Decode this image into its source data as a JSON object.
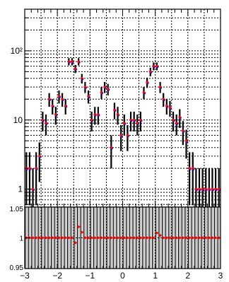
{
  "chart_data": [
    {
      "type": "scatter",
      "panel": "main",
      "title": "",
      "xlabel": "",
      "ylabel": "",
      "xlim": [
        -3,
        3
      ],
      "ylim": [
        0.55,
        400
      ],
      "y_scale": "log",
      "grid": true,
      "legend": "none",
      "y_tick_labels": [
        "1",
        "10",
        "10²"
      ],
      "y_tick_values": [
        1,
        10,
        100
      ],
      "x": [
        -2.95,
        -2.85,
        -2.75,
        -2.65,
        -2.55,
        -2.45,
        -2.35,
        -2.25,
        -2.15,
        -2.05,
        -1.95,
        -1.85,
        -1.75,
        -1.65,
        -1.55,
        -1.45,
        -1.35,
        -1.25,
        -1.15,
        -1.05,
        -0.95,
        -0.85,
        -0.75,
        -0.65,
        -0.55,
        -0.45,
        -0.35,
        -0.25,
        -0.15,
        -0.05,
        0.05,
        0.15,
        0.25,
        0.35,
        0.45,
        0.55,
        0.65,
        0.75,
        0.85,
        0.95,
        1.05,
        1.15,
        1.25,
        1.35,
        1.45,
        1.55,
        1.65,
        1.75,
        1.85,
        1.95,
        2.05,
        2.15,
        2.25,
        2.35,
        2.45,
        2.55,
        2.65,
        2.75,
        2.85,
        2.95
      ],
      "series": [
        {
          "values": [
            2,
            2,
            1,
            2,
            3,
            10,
            9,
            20,
            16,
            12,
            22,
            20,
            16,
            70,
            70,
            55,
            70,
            40,
            30,
            22,
            10,
            12,
            12,
            25,
            30,
            28,
            4,
            14,
            12,
            6,
            9,
            6,
            10,
            10,
            9,
            10,
            25,
            35,
            50,
            60,
            60,
            30,
            20,
            16,
            15,
            10,
            9,
            11,
            7,
            5,
            2,
            2,
            1,
            1,
            1,
            1,
            1,
            1,
            1,
            1
          ],
          "color": "#ff0000",
          "error_bar_color": "#000000"
        },
        {
          "values": [
            2,
            2,
            1,
            2,
            3,
            10,
            9,
            20,
            16,
            12,
            22,
            20,
            16,
            70,
            70,
            55,
            70,
            40,
            30,
            22,
            10,
            12,
            12,
            25,
            30,
            28,
            4,
            14,
            12,
            6,
            9,
            6,
            10,
            10,
            9,
            10,
            25,
            35,
            50,
            60,
            60,
            30,
            20,
            16,
            15,
            10,
            9,
            11,
            7,
            5,
            2,
            2,
            1,
            1,
            1,
            1,
            1,
            1,
            1,
            1
          ],
          "color": "#0000ff",
          "error_bar_color": "#000000"
        }
      ]
    },
    {
      "type": "scatter",
      "panel": "ratio",
      "title": "",
      "xlabel": "",
      "ylabel": "",
      "xlim": [
        -3,
        3
      ],
      "ylim": [
        0.95,
        1.05
      ],
      "grid": true,
      "legend": "none",
      "y_tick_labels": [
        "0.95",
        "1",
        "1.05"
      ],
      "y_tick_values": [
        0.95,
        1,
        1.05
      ],
      "x_tick_labels": [
        "−3",
        "−2",
        "−1",
        "0",
        "1",
        "2",
        "3"
      ],
      "x_tick_values": [
        -3,
        -2,
        -1,
        0,
        1,
        2,
        3
      ],
      "x": [
        -2.95,
        -2.85,
        -2.75,
        -2.65,
        -2.55,
        -2.45,
        -2.35,
        -2.25,
        -2.15,
        -2.05,
        -1.95,
        -1.85,
        -1.75,
        -1.65,
        -1.55,
        -1.45,
        -1.35,
        -1.25,
        -1.15,
        -1.05,
        -0.95,
        -0.85,
        -0.75,
        -0.65,
        -0.55,
        -0.45,
        -0.35,
        -0.25,
        -0.15,
        -0.05,
        0.05,
        0.15,
        0.25,
        0.35,
        0.45,
        0.55,
        0.65,
        0.75,
        0.85,
        0.95,
        1.05,
        1.15,
        1.25,
        1.35,
        1.45,
        1.55,
        1.65,
        1.75,
        1.85,
        1.95,
        2.05,
        2.15,
        2.25,
        2.35,
        2.45,
        2.55,
        2.65,
        2.75,
        2.85,
        2.95
      ],
      "series": [
        {
          "values": [
            1,
            1,
            1,
            1,
            1,
            1,
            1,
            1,
            1,
            1,
            1,
            1,
            1,
            1,
            1,
            0.992,
            1.018,
            1.009,
            1,
            1,
            1,
            1,
            1,
            1,
            1,
            1,
            1,
            1,
            1,
            1,
            1,
            1,
            1,
            1,
            1,
            1,
            1,
            1,
            1,
            1,
            1.008,
            1.004,
            1,
            1,
            1,
            1,
            1,
            1,
            1,
            1,
            1,
            1,
            1,
            1,
            1,
            1,
            1,
            1,
            1,
            1
          ],
          "color": "#ff0000",
          "error_bar_color": "#000000"
        }
      ]
    }
  ]
}
